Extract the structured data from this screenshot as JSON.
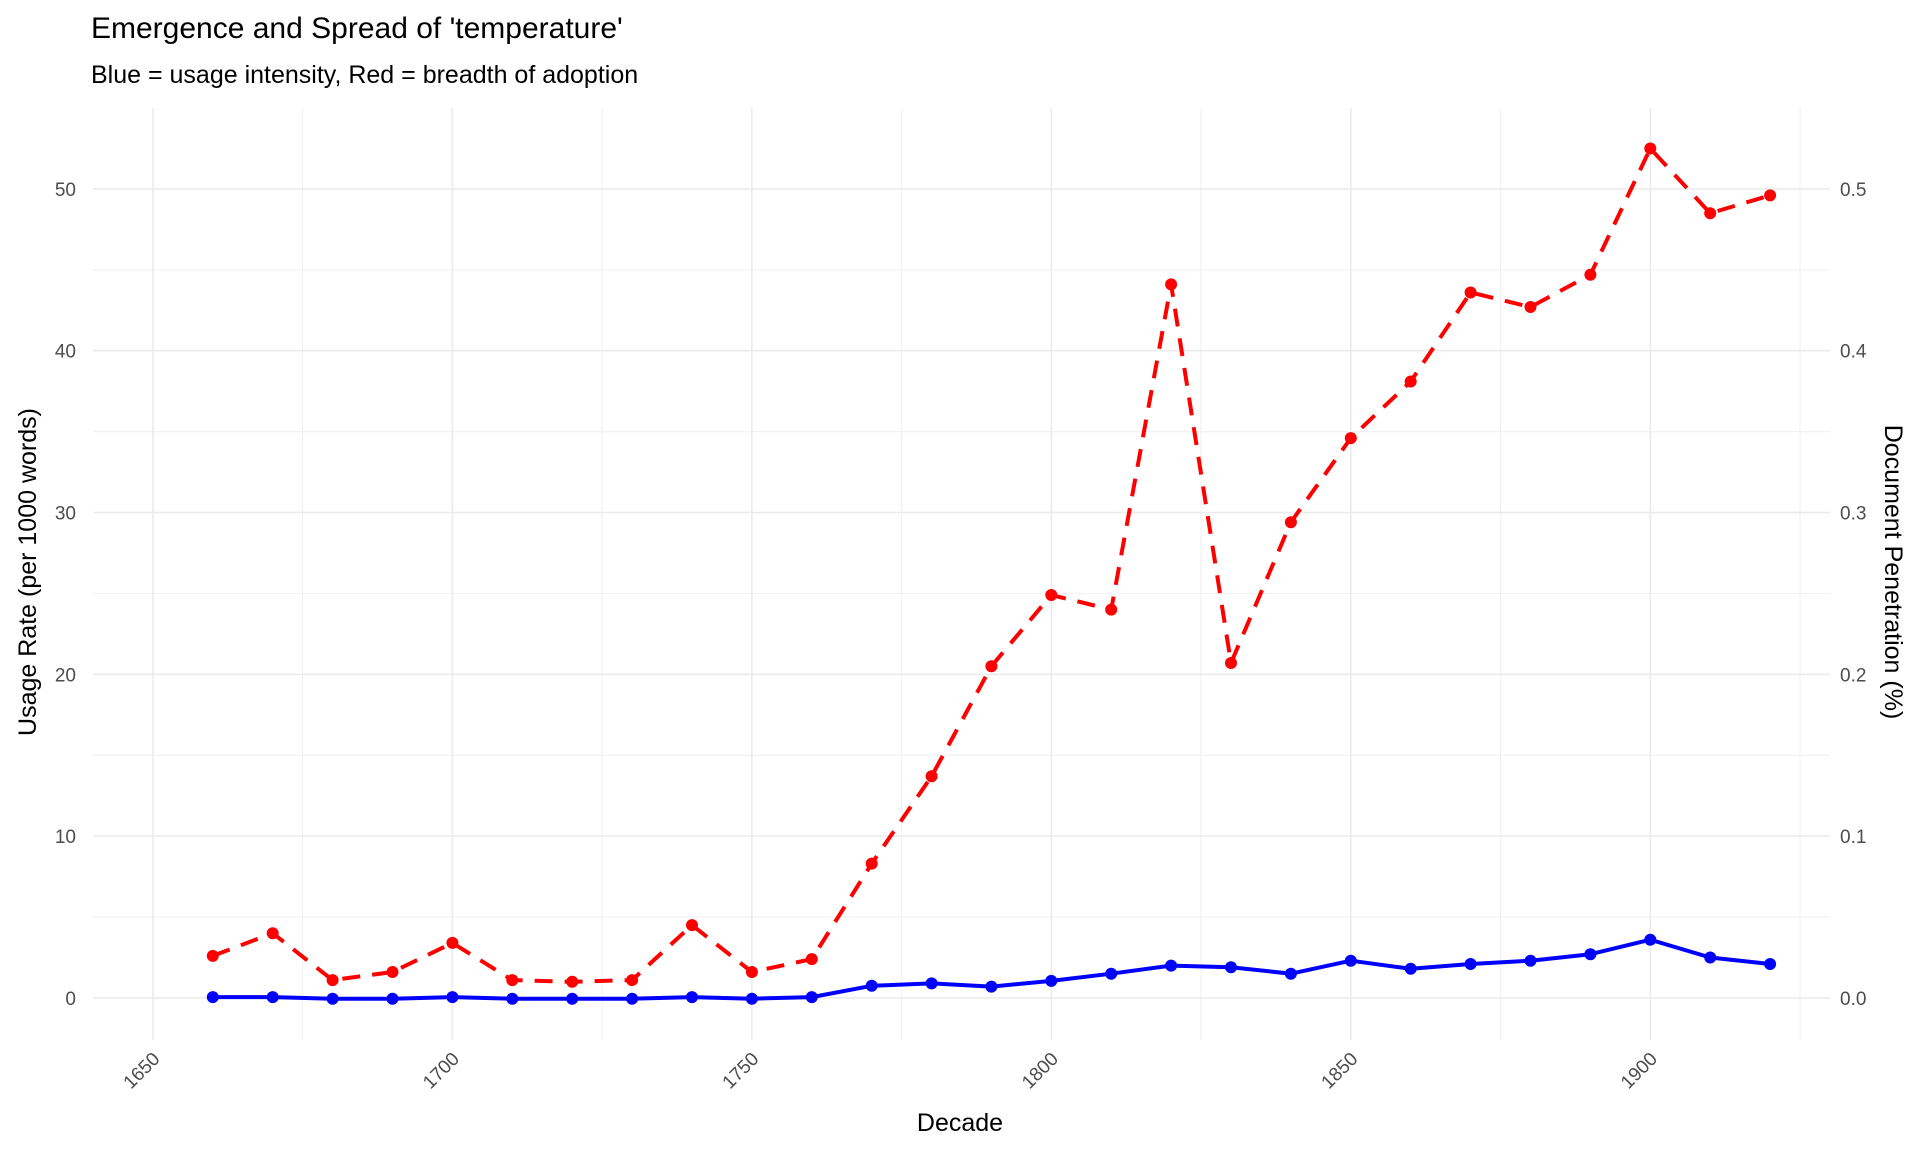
{
  "chart_data": {
    "type": "line",
    "title": "Emergence and Spread of 'temperature'",
    "subtitle": "Blue = usage intensity, Red = breadth of adoption",
    "xlabel": "Decade",
    "ylabel": "Usage Rate (per 1000 words)",
    "y2label": "Document Penetration (%)",
    "xlim": [
      1640,
      1930
    ],
    "ylim": [
      -2.6,
      55
    ],
    "y2lim": [
      -0.026,
      0.55
    ],
    "x_ticks": [
      1650,
      1700,
      1750,
      1800,
      1850,
      1900
    ],
    "y_ticks": [
      0,
      10,
      20,
      30,
      40,
      50
    ],
    "y2_ticks": [
      "0.0",
      "0.1",
      "0.2",
      "0.3",
      "0.4",
      "0.5"
    ],
    "grid": true,
    "legend": "none",
    "x": [
      1660,
      1670,
      1680,
      1690,
      1700,
      1710,
      1720,
      1730,
      1740,
      1750,
      1760,
      1770,
      1780,
      1790,
      1800,
      1810,
      1820,
      1830,
      1840,
      1850,
      1860,
      1870,
      1880,
      1890,
      1900,
      1910,
      1920
    ],
    "series": [
      {
        "axis": "left",
        "color": "#0000ff",
        "style": "solid",
        "values": [
          0.05,
          0.05,
          -0.05,
          -0.05,
          0.05,
          -0.05,
          -0.05,
          -0.05,
          0.05,
          -0.05,
          0.05,
          0.75,
          0.9,
          0.7,
          1.05,
          1.5,
          2.0,
          1.9,
          1.5,
          2.3,
          1.8,
          2.1,
          2.3,
          2.7,
          3.6,
          2.5,
          2.1
        ]
      },
      {
        "axis": "right",
        "color": "#ff0000",
        "style": "dashed",
        "values": [
          0.026,
          0.04,
          0.011,
          0.016,
          0.034,
          0.011,
          0.01,
          0.011,
          0.045,
          0.016,
          0.024,
          0.083,
          0.137,
          0.205,
          0.249,
          0.24,
          0.441,
          0.207,
          0.294,
          0.346,
          0.381,
          0.436,
          0.427,
          0.447,
          0.525,
          0.485,
          0.496
        ]
      }
    ]
  }
}
